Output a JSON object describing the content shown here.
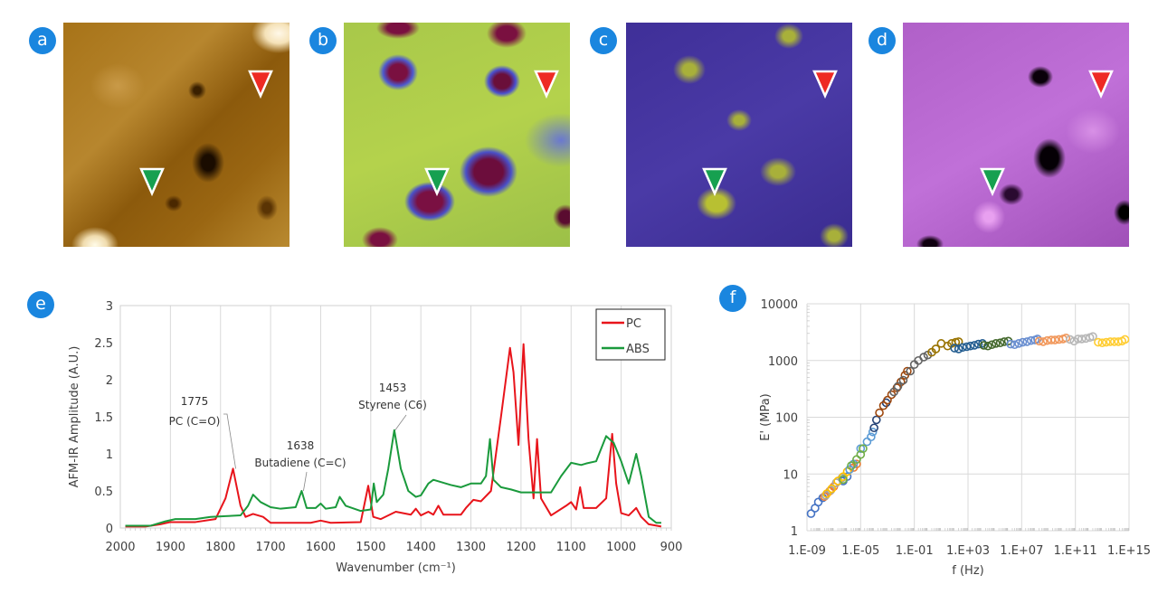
{
  "panels": {
    "labels": [
      "a",
      "b",
      "c",
      "d",
      "e",
      "f"
    ],
    "marker_colors": {
      "red": "#ee2a24",
      "green": "#16a050"
    }
  },
  "chart_data": [
    {
      "type": "line",
      "panel": "e",
      "xlabel": "Wavenumber (cm⁻¹)",
      "ylabel": "AFM-IR Amplitude (A.U.)",
      "xlim": [
        2000,
        900
      ],
      "ylim": [
        0,
        3
      ],
      "x_reversed": true,
      "xticks": [
        2000,
        1900,
        1800,
        1700,
        1600,
        1500,
        1400,
        1300,
        1200,
        1100,
        1000,
        900
      ],
      "yticks": [
        0,
        0.5,
        1,
        1.5,
        2,
        2.5,
        3
      ],
      "ytick_labels": [
        "0",
        "0.5",
        "1",
        "1.5",
        "2",
        "2.5",
        "3"
      ],
      "grid": "vertical",
      "legend": "top-right",
      "series": [
        {
          "name": "PC",
          "color": "#e8141b",
          "points": [
            [
              1990,
              0.02
            ],
            [
              1950,
              0.02
            ],
            [
              1920,
              0.05
            ],
            [
              1900,
              0.08
            ],
            [
              1850,
              0.08
            ],
            [
              1810,
              0.12
            ],
            [
              1790,
              0.4
            ],
            [
              1775,
              0.8
            ],
            [
              1760,
              0.3
            ],
            [
              1750,
              0.15
            ],
            [
              1735,
              0.19
            ],
            [
              1715,
              0.15
            ],
            [
              1700,
              0.07
            ],
            [
              1650,
              0.07
            ],
            [
              1620,
              0.07
            ],
            [
              1600,
              0.1
            ],
            [
              1580,
              0.07
            ],
            [
              1520,
              0.08
            ],
            [
              1505,
              0.57
            ],
            [
              1495,
              0.15
            ],
            [
              1480,
              0.12
            ],
            [
              1450,
              0.22
            ],
            [
              1420,
              0.18
            ],
            [
              1410,
              0.26
            ],
            [
              1400,
              0.17
            ],
            [
              1385,
              0.22
            ],
            [
              1375,
              0.18
            ],
            [
              1365,
              0.3
            ],
            [
              1355,
              0.18
            ],
            [
              1320,
              0.18
            ],
            [
              1310,
              0.27
            ],
            [
              1295,
              0.38
            ],
            [
              1280,
              0.36
            ],
            [
              1260,
              0.5
            ],
            [
              1240,
              1.5
            ],
            [
              1222,
              2.43
            ],
            [
              1215,
              2.1
            ],
            [
              1205,
              1.12
            ],
            [
              1195,
              2.48
            ],
            [
              1185,
              1.2
            ],
            [
              1175,
              0.4
            ],
            [
              1168,
              1.2
            ],
            [
              1160,
              0.4
            ],
            [
              1140,
              0.17
            ],
            [
              1110,
              0.3
            ],
            [
              1100,
              0.35
            ],
            [
              1090,
              0.25
            ],
            [
              1082,
              0.55
            ],
            [
              1075,
              0.27
            ],
            [
              1050,
              0.27
            ],
            [
              1030,
              0.4
            ],
            [
              1018,
              1.27
            ],
            [
              1010,
              0.6
            ],
            [
              1000,
              0.2
            ],
            [
              985,
              0.17
            ],
            [
              970,
              0.27
            ],
            [
              960,
              0.15
            ],
            [
              945,
              0.05
            ],
            [
              920,
              0.02
            ]
          ]
        },
        {
          "name": "ABS",
          "color": "#1a9a3c",
          "points": [
            [
              1990,
              0.03
            ],
            [
              1940,
              0.03
            ],
            [
              1910,
              0.09
            ],
            [
              1890,
              0.12
            ],
            [
              1850,
              0.12
            ],
            [
              1820,
              0.15
            ],
            [
              1790,
              0.16
            ],
            [
              1760,
              0.17
            ],
            [
              1745,
              0.3
            ],
            [
              1735,
              0.45
            ],
            [
              1720,
              0.35
            ],
            [
              1700,
              0.28
            ],
            [
              1680,
              0.26
            ],
            [
              1650,
              0.28
            ],
            [
              1638,
              0.5
            ],
            [
              1628,
              0.27
            ],
            [
              1610,
              0.27
            ],
            [
              1600,
              0.33
            ],
            [
              1590,
              0.26
            ],
            [
              1570,
              0.28
            ],
            [
              1562,
              0.42
            ],
            [
              1550,
              0.3
            ],
            [
              1520,
              0.23
            ],
            [
              1500,
              0.25
            ],
            [
              1494,
              0.6
            ],
            [
              1488,
              0.35
            ],
            [
              1475,
              0.45
            ],
            [
              1465,
              0.8
            ],
            [
              1453,
              1.32
            ],
            [
              1440,
              0.8
            ],
            [
              1425,
              0.5
            ],
            [
              1410,
              0.42
            ],
            [
              1400,
              0.44
            ],
            [
              1385,
              0.6
            ],
            [
              1375,
              0.65
            ],
            [
              1340,
              0.58
            ],
            [
              1320,
              0.55
            ],
            [
              1300,
              0.6
            ],
            [
              1280,
              0.6
            ],
            [
              1270,
              0.7
            ],
            [
              1262,
              1.2
            ],
            [
              1255,
              0.65
            ],
            [
              1240,
              0.55
            ],
            [
              1220,
              0.52
            ],
            [
              1200,
              0.48
            ],
            [
              1180,
              0.48
            ],
            [
              1160,
              0.48
            ],
            [
              1140,
              0.48
            ],
            [
              1120,
              0.7
            ],
            [
              1100,
              0.88
            ],
            [
              1080,
              0.85
            ],
            [
              1070,
              0.87
            ],
            [
              1050,
              0.9
            ],
            [
              1030,
              1.24
            ],
            [
              1015,
              1.15
            ],
            [
              1000,
              0.9
            ],
            [
              985,
              0.6
            ],
            [
              970,
              1.0
            ],
            [
              960,
              0.7
            ],
            [
              945,
              0.15
            ],
            [
              930,
              0.07
            ],
            [
              920,
              0.07
            ]
          ]
        }
      ],
      "annotations": [
        {
          "peak": "1775",
          "label": "PC (C=O)",
          "at": [
            1775,
            0.8
          ]
        },
        {
          "peak": "1638",
          "label": "Butadiene (C=C)",
          "at": [
            1638,
            0.5
          ]
        },
        {
          "peak": "1453",
          "label": "Styrene (C6)",
          "at": [
            1453,
            1.32
          ]
        }
      ]
    },
    {
      "type": "scatter",
      "panel": "f",
      "xlabel": "f (Hz)",
      "ylabel": "E' (MPa)",
      "xscale": "log",
      "yscale": "log",
      "xlim": [
        1e-09,
        1000000000000000.0
      ],
      "ylim": [
        1,
        10000
      ],
      "xticks": [
        1e-09,
        1e-05,
        0.1,
        1000.0,
        10000000.0,
        100000000000.0,
        1000000000000000.0
      ],
      "xtick_labels": [
        "1.E-09",
        "1.E-05",
        "1.E-01",
        "1.E+03",
        "1.E+07",
        "1.E+11",
        "1.E+15"
      ],
      "yticks": [
        1,
        10,
        100,
        1000,
        10000
      ],
      "ytick_labels": [
        "1",
        "10",
        "100",
        "1000",
        "10000"
      ],
      "grid": "both",
      "marker": "open-circle",
      "series": [
        {
          "color": "#4472c4",
          "points": [
            [
              2e-09,
              2
            ],
            [
              4e-09,
              2.5
            ],
            [
              7e-09,
              3.2
            ],
            [
              1.5e-08,
              3.8
            ],
            [
              5e-07,
              7.5
            ],
            [
              1e-06,
              9
            ]
          ]
        },
        {
          "color": "#ed7d31",
          "points": [
            [
              2e-08,
              4
            ],
            [
              5e-08,
              5
            ],
            [
              1e-07,
              6
            ],
            [
              3e-06,
              13
            ],
            [
              5e-06,
              15
            ]
          ]
        },
        {
          "color": "#a5a5a5",
          "points": [
            [
              2.5e-08,
              4.2
            ],
            [
              6e-08,
              5.2
            ],
            [
              1.5e-07,
              7
            ],
            [
              4e-07,
              8.5
            ]
          ]
        },
        {
          "color": "#ffc000",
          "points": [
            [
              3e-08,
              4.5
            ],
            [
              7e-08,
              5.5
            ],
            [
              2e-07,
              7.5
            ],
            [
              5e-07,
              9
            ],
            [
              1e-06,
              11
            ]
          ]
        },
        {
          "color": "#5b9bd5",
          "points": [
            [
              1.5e-06,
              12
            ],
            [
              3e-06,
              15
            ],
            [
              1e-05,
              28
            ],
            [
              3e-05,
              37
            ],
            [
              6e-05,
              45
            ],
            [
              8e-05,
              55
            ]
          ]
        },
        {
          "color": "#70ad47",
          "points": [
            [
              5e-07,
              8
            ],
            [
              2e-06,
              14
            ],
            [
              5e-06,
              18
            ],
            [
              1e-05,
              22
            ],
            [
              1.5e-05,
              28
            ]
          ]
        },
        {
          "color": "#264478",
          "points": [
            [
              0.0001,
              65
            ],
            [
              0.00015,
              90
            ],
            [
              0.0008,
              180
            ]
          ]
        },
        {
          "color": "#9e480e",
          "points": [
            [
              0.00025,
              120
            ],
            [
              0.0005,
              160
            ],
            [
              0.001,
              200
            ],
            [
              0.002,
              250
            ],
            [
              0.005,
              330
            ],
            [
              0.01,
              420
            ],
            [
              0.02,
              550
            ],
            [
              0.03,
              650
            ]
          ]
        },
        {
          "color": "#636363",
          "points": [
            [
              0.003,
              280
            ],
            [
              0.006,
              350
            ],
            [
              0.015,
              450
            ],
            [
              0.05,
              650
            ],
            [
              0.1,
              850
            ],
            [
              0.2,
              1000
            ],
            [
              0.5,
              1150
            ],
            [
              1,
              1250
            ]
          ]
        },
        {
          "color": "#997300",
          "points": [
            [
              2,
              1400
            ],
            [
              4,
              1600
            ],
            [
              10,
              2000
            ],
            [
              30,
              1800
            ],
            [
              60,
              2000
            ],
            [
              120,
              2100
            ],
            [
              200,
              2150
            ]
          ]
        },
        {
          "color": "#255e91",
          "points": [
            [
              100,
              1650
            ],
            [
              200,
              1600
            ],
            [
              400,
              1700
            ],
            [
              800,
              1750
            ],
            [
              1500,
              1800
            ],
            [
              3000,
              1850
            ],
            [
              6000,
              1950
            ],
            [
              12000,
              2000
            ]
          ]
        },
        {
          "color": "#43682b",
          "points": [
            [
              15000.0,
              1850
            ],
            [
              30000.0,
              1800
            ],
            [
              60000.0,
              1900
            ],
            [
              120000.0,
              2000
            ],
            [
              250000.0,
              2050
            ],
            [
              500000.0,
              2150
            ],
            [
              1000000.0,
              2200
            ]
          ]
        },
        {
          "color": "#698ed0",
          "points": [
            [
              1500000.0,
              1950
            ],
            [
              3000000.0,
              1900
            ],
            [
              6000000.0,
              2000
            ],
            [
              12000000.0,
              2100
            ],
            [
              25000000.0,
              2150
            ],
            [
              50000000.0,
              2250
            ],
            [
              100000000.0,
              2300
            ],
            [
              150000000.0,
              2400
            ]
          ]
        },
        {
          "color": "#f1975a",
          "points": [
            [
              200000000.0,
              2200
            ],
            [
              400000000.0,
              2150
            ],
            [
              800000000.0,
              2250
            ],
            [
              1600000000.0,
              2300
            ],
            [
              3000000000.0,
              2300
            ],
            [
              6000000000.0,
              2350
            ],
            [
              12000000000.0,
              2400
            ],
            [
              20000000000.0,
              2500
            ]
          ]
        },
        {
          "color": "#b7b7b7",
          "points": [
            [
              40000000000.0,
              2350
            ],
            [
              80000000000.0,
              2200
            ],
            [
              160000000000.0,
              2400
            ],
            [
              300000000000.0,
              2400
            ],
            [
              600000000000.0,
              2450
            ],
            [
              1200000000000.0,
              2550
            ],
            [
              2000000000000.0,
              2650
            ]
          ]
        },
        {
          "color": "#ffcd33",
          "points": [
            [
              5000000000000.0,
              2100
            ],
            [
              10000000000000.0,
              2050
            ],
            [
              20000000000000.0,
              2100
            ],
            [
              40000000000000.0,
              2150
            ],
            [
              80000000000000.0,
              2150
            ],
            [
              160000000000000.0,
              2150
            ],
            [
              300000000000000.0,
              2200
            ],
            [
              500000000000000.0,
              2350
            ]
          ]
        }
      ]
    }
  ]
}
